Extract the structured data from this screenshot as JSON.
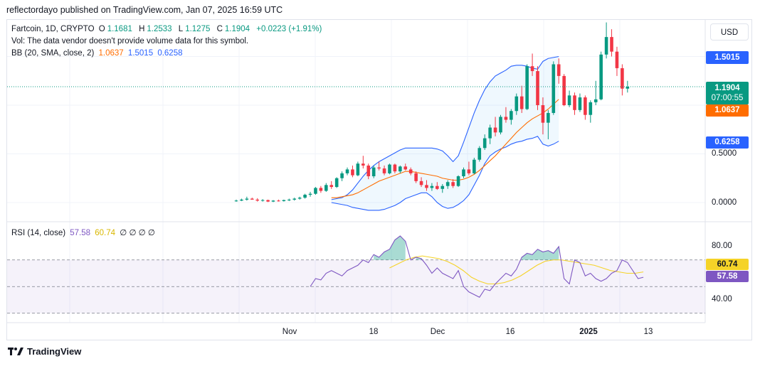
{
  "header": {
    "text": "reflectordayo published on TradingView.com, Jan 07, 2025 16:59 UTC"
  },
  "footer": {
    "brand": "TradingView"
  },
  "currency": "USD",
  "legend": {
    "symbol": "Fartcoin, 1D, CRYPTO",
    "open_label": "O",
    "open": "1.1681",
    "high_label": "H",
    "high": "1.2533",
    "low_label": "L",
    "low": "1.1275",
    "close_label": "C",
    "close": "1.1904",
    "change": "+0.0223 (+1.91%)",
    "vol_note": "Vol: The data vendor doesn't provide volume data for this symbol.",
    "bb_label": "BB (20, SMA, close, 2)",
    "bb_basis": "1.0637",
    "bb_upper": "1.5015",
    "bb_lower": "0.6258",
    "rsi_label": "RSI (14, close)",
    "rsi_value": "57.58",
    "rsi_ma": "60.74",
    "rsi_extra": "∅ ∅ ∅ ∅"
  },
  "badges": {
    "upper": "1.5015",
    "price": "1.1904",
    "countdown": "07:00:55",
    "basis": "1.0637",
    "lower": "0.6258",
    "rsi_ma": "60.74",
    "rsi": "57.58"
  },
  "colors": {
    "up": "#089981",
    "down": "#f23645",
    "basis": "#ff6d00",
    "band": "#2962ff",
    "rsi": "#7e57c2",
    "rsi_ma": "#f5d328"
  },
  "chart_data": [
    {
      "type": "candlestick",
      "title": "Fartcoin, 1D, CRYPTO",
      "x_tick_labels": [
        "Nov",
        "18",
        "Dec",
        "16",
        "2025",
        "13"
      ],
      "y_tick_labels": [
        "0.0000",
        "0.5000"
      ],
      "ylim": [
        -0.2,
        1.9
      ],
      "ohlc": [
        [
          0.02,
          0.03,
          0.008,
          0.02
        ],
        [
          0.02,
          0.04,
          0.015,
          0.03
        ],
        [
          0.03,
          0.06,
          0.02,
          0.04
        ],
        [
          0.04,
          0.05,
          0.03,
          0.03
        ],
        [
          0.03,
          0.045,
          0.01,
          0.02
        ],
        [
          0.02,
          0.035,
          0.01,
          0.025
        ],
        [
          0.025,
          0.03,
          0.005,
          0.01
        ],
        [
          0.01,
          0.025,
          0.005,
          0.02
        ],
        [
          0.02,
          0.03,
          0.01,
          0.015
        ],
        [
          0.015,
          0.03,
          0.01,
          0.025
        ],
        [
          0.025,
          0.04,
          0.015,
          0.03
        ],
        [
          0.03,
          0.05,
          0.02,
          0.04
        ],
        [
          0.04,
          0.06,
          0.03,
          0.05
        ],
        [
          0.05,
          0.09,
          0.04,
          0.08
        ],
        [
          0.08,
          0.11,
          0.06,
          0.09
        ],
        [
          0.09,
          0.16,
          0.08,
          0.15
        ],
        [
          0.15,
          0.17,
          0.1,
          0.12
        ],
        [
          0.12,
          0.2,
          0.11,
          0.18
        ],
        [
          0.18,
          0.22,
          0.14,
          0.16
        ],
        [
          0.16,
          0.26,
          0.15,
          0.25
        ],
        [
          0.25,
          0.32,
          0.22,
          0.3
        ],
        [
          0.3,
          0.36,
          0.28,
          0.34
        ],
        [
          0.34,
          0.38,
          0.26,
          0.28
        ],
        [
          0.28,
          0.42,
          0.27,
          0.4
        ],
        [
          0.4,
          0.48,
          0.35,
          0.38
        ],
        [
          0.38,
          0.4,
          0.24,
          0.27
        ],
        [
          0.27,
          0.38,
          0.25,
          0.36
        ],
        [
          0.36,
          0.42,
          0.33,
          0.35
        ],
        [
          0.35,
          0.38,
          0.28,
          0.3
        ],
        [
          0.3,
          0.4,
          0.29,
          0.39
        ],
        [
          0.39,
          0.4,
          0.3,
          0.32
        ],
        [
          0.32,
          0.38,
          0.3,
          0.37
        ],
        [
          0.37,
          0.4,
          0.33,
          0.34
        ],
        [
          0.34,
          0.36,
          0.28,
          0.3
        ],
        [
          0.3,
          0.32,
          0.2,
          0.22
        ],
        [
          0.22,
          0.26,
          0.16,
          0.18
        ],
        [
          0.18,
          0.23,
          0.12,
          0.15
        ],
        [
          0.15,
          0.2,
          0.12,
          0.17
        ],
        [
          0.17,
          0.21,
          0.13,
          0.14
        ],
        [
          0.14,
          0.19,
          0.1,
          0.17
        ],
        [
          0.17,
          0.23,
          0.14,
          0.21
        ],
        [
          0.21,
          0.24,
          0.15,
          0.17
        ],
        [
          0.17,
          0.28,
          0.16,
          0.27
        ],
        [
          0.27,
          0.36,
          0.25,
          0.34
        ],
        [
          0.34,
          0.42,
          0.28,
          0.3
        ],
        [
          0.3,
          0.46,
          0.29,
          0.44
        ],
        [
          0.44,
          0.58,
          0.42,
          0.56
        ],
        [
          0.56,
          0.7,
          0.54,
          0.66
        ],
        [
          0.66,
          0.8,
          0.6,
          0.77
        ],
        [
          0.77,
          0.88,
          0.68,
          0.72
        ],
        [
          0.72,
          0.9,
          0.7,
          0.88
        ],
        [
          0.88,
          0.98,
          0.82,
          0.85
        ],
        [
          0.85,
          0.96,
          0.8,
          0.94
        ],
        [
          0.94,
          1.12,
          0.9,
          1.09
        ],
        [
          1.09,
          1.2,
          0.92,
          0.96
        ],
        [
          0.96,
          1.42,
          0.95,
          1.4
        ],
        [
          1.4,
          1.53,
          1.3,
          1.35
        ],
        [
          1.35,
          1.4,
          0.95,
          1.0
        ],
        [
          1.0,
          1.08,
          0.7,
          0.82
        ],
        [
          0.82,
          0.95,
          0.65,
          0.92
        ],
        [
          0.92,
          1.45,
          0.9,
          1.42
        ],
        [
          1.42,
          1.48,
          1.22,
          1.3
        ],
        [
          1.3,
          1.32,
          0.99,
          1.0
        ],
        [
          1.0,
          1.15,
          0.98,
          1.1
        ],
        [
          1.1,
          1.13,
          0.9,
          0.95
        ],
        [
          0.95,
          1.12,
          0.93,
          1.08
        ],
        [
          1.08,
          1.1,
          0.85,
          0.9
        ],
        [
          0.9,
          1.05,
          0.82,
          1.03
        ],
        [
          1.03,
          1.25,
          1.0,
          1.06
        ],
        [
          1.06,
          1.55,
          1.05,
          1.52
        ],
        [
          1.52,
          1.85,
          1.48,
          1.7
        ],
        [
          1.7,
          1.78,
          1.5,
          1.55
        ],
        [
          1.55,
          1.6,
          1.3,
          1.38
        ],
        [
          1.38,
          1.42,
          1.1,
          1.17
        ],
        [
          1.17,
          1.25,
          1.13,
          1.19
        ]
      ],
      "bollinger": {
        "basis": [
          0.05,
          0.05,
          0.06,
          0.07,
          0.08,
          0.1,
          0.13,
          0.16,
          0.19,
          0.22,
          0.24,
          0.26,
          0.28,
          0.3,
          0.32,
          0.32,
          0.31,
          0.3,
          0.29,
          0.28,
          0.27,
          0.25,
          0.24,
          0.23,
          0.23,
          0.24,
          0.26,
          0.29,
          0.33,
          0.38,
          0.43,
          0.48,
          0.54,
          0.6,
          0.66,
          0.72,
          0.77,
          0.82,
          0.86,
          0.89,
          0.92,
          0.96,
          1.01,
          1.06
        ],
        "upper": [
          0.03,
          0.04,
          0.05,
          0.08,
          0.13,
          0.2,
          0.27,
          0.33,
          0.38,
          0.42,
          0.45,
          0.48,
          0.51,
          0.54,
          0.56,
          0.56,
          0.56,
          0.56,
          0.56,
          0.56,
          0.55,
          0.53,
          0.48,
          0.42,
          0.48,
          0.62,
          0.77,
          0.92,
          1.05,
          1.16,
          1.24,
          1.3,
          1.33,
          1.36,
          1.4,
          1.41,
          1.41,
          1.4,
          1.38,
          1.37,
          1.45,
          1.48,
          1.49,
          1.5
        ],
        "lower": [
          0.0,
          -0.01,
          -0.02,
          -0.03,
          -0.05,
          -0.06,
          -0.07,
          -0.08,
          -0.08,
          -0.08,
          -0.07,
          -0.05,
          -0.03,
          0.0,
          0.04,
          0.06,
          0.08,
          0.1,
          0.1,
          0.06,
          0.0,
          -0.04,
          -0.06,
          -0.05,
          -0.02,
          0.02,
          0.08,
          0.18,
          0.28,
          0.4,
          0.48,
          0.52,
          0.55,
          0.57,
          0.6,
          0.62,
          0.63,
          0.65,
          0.66,
          0.68,
          0.6,
          0.58,
          0.6,
          0.63
        ]
      }
    },
    {
      "type": "line",
      "title": "RSI (14, close)",
      "y_tick_labels": [
        "80.00",
        "40.00"
      ],
      "ylim": [
        28,
        92
      ],
      "bands": [
        30,
        50,
        70
      ],
      "series": [
        {
          "name": "RSI",
          "values": [
            50,
            56,
            55,
            60,
            62,
            60,
            58,
            62,
            64,
            66,
            70,
            68,
            74,
            72,
            76,
            78,
            85,
            88,
            84,
            70,
            72,
            71,
            66,
            60,
            64,
            60,
            58,
            56,
            62,
            50,
            46,
            44,
            42,
            48,
            47,
            52,
            56,
            60,
            58,
            63,
            72,
            75,
            74,
            78,
            76,
            77,
            75,
            80,
            56,
            52,
            70,
            68,
            58,
            60,
            56,
            54,
            56,
            60,
            62,
            70,
            68,
            62,
            56,
            57
          ]
        },
        {
          "name": "RSI MA",
          "values": [
            64,
            67,
            70,
            72,
            73,
            72,
            71,
            69,
            66,
            62,
            57,
            54,
            52,
            52,
            53,
            55,
            58,
            62,
            66,
            69,
            70,
            70,
            69,
            68,
            67,
            66,
            64,
            62,
            61,
            60,
            60,
            61
          ]
        }
      ]
    }
  ]
}
